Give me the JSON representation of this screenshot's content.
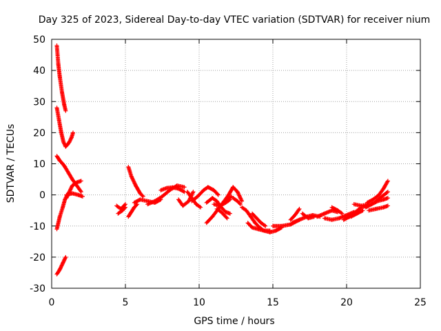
{
  "chart_data": {
    "type": "scatter",
    "title": "Day 325 of 2023, Sidereal Day-to-day VTEC variation (SDTVAR) for receiver nium",
    "xlabel": "GPS time / hours",
    "ylabel": "SDTVAR / TECUs",
    "xlim": [
      0,
      25
    ],
    "ylim": [
      -30,
      50
    ],
    "xticks": [
      0,
      5,
      10,
      15,
      20,
      25
    ],
    "yticks": [
      -30,
      -20,
      -10,
      0,
      10,
      20,
      30,
      40,
      50
    ],
    "grid": true,
    "marker": "+",
    "color": "#ff0000",
    "segments": [
      [
        [
          0.35,
          48
        ],
        [
          0.45,
          42
        ],
        [
          0.55,
          38
        ],
        [
          0.7,
          33
        ],
        [
          0.85,
          29
        ],
        [
          0.95,
          27
        ]
      ],
      [
        [
          0.35,
          28
        ],
        [
          0.5,
          24
        ],
        [
          0.65,
          20
        ],
        [
          0.8,
          17
        ],
        [
          0.95,
          15.5
        ],
        [
          1.05,
          16
        ],
        [
          1.2,
          17
        ],
        [
          1.35,
          18.5
        ],
        [
          1.45,
          20
        ]
      ],
      [
        [
          0.35,
          12.5
        ],
        [
          0.55,
          11
        ],
        [
          0.75,
          10
        ],
        [
          0.9,
          9
        ]
      ],
      [
        [
          0.9,
          9
        ],
        [
          1.15,
          7
        ],
        [
          1.4,
          5
        ],
        [
          1.7,
          3
        ],
        [
          2.0,
          1
        ]
      ],
      [
        [
          1.0,
          -1
        ],
        [
          1.2,
          1
        ],
        [
          1.4,
          3
        ],
        [
          1.7,
          4
        ],
        [
          2.0,
          4.5
        ]
      ],
      [
        [
          1.0,
          0
        ],
        [
          1.4,
          0.5
        ],
        [
          1.8,
          0
        ],
        [
          2.1,
          -0.5
        ]
      ],
      [
        [
          0.35,
          -11
        ],
        [
          0.55,
          -7
        ],
        [
          0.75,
          -4
        ],
        [
          0.9,
          -1.5
        ],
        [
          1.05,
          0
        ]
      ],
      [
        [
          0.35,
          -25.5
        ],
        [
          0.55,
          -24
        ],
        [
          0.75,
          -22
        ],
        [
          0.95,
          -20
        ]
      ],
      [
        [
          4.4,
          -3.5
        ],
        [
          4.7,
          -4.5
        ],
        [
          5.0,
          -3
        ]
      ],
      [
        [
          4.5,
          -6
        ],
        [
          4.8,
          -5
        ],
        [
          5.0,
          -4
        ]
      ],
      [
        [
          5.2,
          9
        ],
        [
          5.4,
          6
        ],
        [
          5.7,
          3
        ],
        [
          6.0,
          0.5
        ],
        [
          6.2,
          -0.5
        ]
      ],
      [
        [
          5.2,
          -7
        ],
        [
          5.4,
          -5.5
        ],
        [
          5.6,
          -4
        ],
        [
          5.8,
          -3
        ]
      ],
      [
        [
          5.6,
          -2.5
        ],
        [
          6.0,
          -1.5
        ],
        [
          6.5,
          -2
        ],
        [
          7.0,
          -2.5
        ],
        [
          7.4,
          -1.5
        ]
      ],
      [
        [
          6.5,
          -3
        ],
        [
          7.0,
          -2
        ],
        [
          7.5,
          -0.5
        ],
        [
          8.0,
          1.5
        ],
        [
          8.5,
          3
        ],
        [
          9.0,
          2.5
        ]
      ],
      [
        [
          7.4,
          1.5
        ],
        [
          7.8,
          2.2
        ],
        [
          8.2,
          2.4
        ],
        [
          8.6,
          2
        ],
        [
          9.0,
          1
        ]
      ],
      [
        [
          8.6,
          -1.5
        ],
        [
          8.9,
          -3.5
        ],
        [
          9.3,
          -2
        ],
        [
          9.6,
          1
        ]
      ],
      [
        [
          9.2,
          1
        ],
        [
          9.5,
          -1
        ],
        [
          9.8,
          -3
        ],
        [
          10.1,
          -4
        ]
      ],
      [
        [
          9.5,
          -2
        ],
        [
          9.9,
          -0.5
        ],
        [
          10.3,
          1.5
        ],
        [
          10.6,
          2.5
        ],
        [
          11.0,
          1.5
        ],
        [
          11.3,
          0
        ]
      ],
      [
        [
          10.5,
          -2.5
        ],
        [
          10.9,
          -1
        ],
        [
          11.2,
          -2
        ],
        [
          11.5,
          -4
        ],
        [
          11.8,
          -5.5
        ],
        [
          12.1,
          -6
        ]
      ],
      [
        [
          10.5,
          -9
        ],
        [
          10.9,
          -7
        ],
        [
          11.3,
          -4.5
        ],
        [
          11.7,
          -2
        ],
        [
          12.2,
          -0.5
        ]
      ],
      [
        [
          11.0,
          -3
        ],
        [
          11.4,
          -3.5
        ],
        [
          11.8,
          -2.5
        ],
        [
          12.1,
          -1.5
        ]
      ],
      [
        [
          11.2,
          -4.5
        ],
        [
          11.5,
          -5.5
        ],
        [
          11.9,
          -7.5
        ]
      ],
      [
        [
          11.7,
          -2
        ],
        [
          12.0,
          0
        ],
        [
          12.3,
          2.5
        ],
        [
          12.6,
          1
        ],
        [
          12.9,
          -2
        ]
      ],
      [
        [
          12.3,
          -1
        ],
        [
          12.6,
          -2
        ],
        [
          12.8,
          -3
        ]
      ],
      [
        [
          12.9,
          -4
        ],
        [
          13.2,
          -5
        ],
        [
          13.5,
          -7
        ],
        [
          13.8,
          -9
        ],
        [
          14.1,
          -10.5
        ],
        [
          14.4,
          -11.5
        ],
        [
          14.8,
          -12
        ],
        [
          15.2,
          -11.5
        ],
        [
          15.6,
          -10.5
        ]
      ],
      [
        [
          13.3,
          -9
        ],
        [
          13.6,
          -10.5
        ],
        [
          14.0,
          -11
        ],
        [
          14.4,
          -11.5
        ],
        [
          14.8,
          -11.5
        ]
      ],
      [
        [
          13.6,
          -6
        ],
        [
          13.9,
          -7.5
        ],
        [
          14.2,
          -9
        ],
        [
          14.5,
          -10
        ]
      ],
      [
        [
          15.0,
          -10
        ],
        [
          15.6,
          -10
        ],
        [
          16.2,
          -9.5
        ],
        [
          16.8,
          -8
        ]
      ],
      [
        [
          16.2,
          -8
        ],
        [
          16.5,
          -6.5
        ],
        [
          16.8,
          -4.5
        ]
      ],
      [
        [
          16.3,
          -9
        ],
        [
          16.8,
          -8
        ],
        [
          17.3,
          -7
        ],
        [
          17.7,
          -6.5
        ],
        [
          18.2,
          -7
        ]
      ],
      [
        [
          17.0,
          -6
        ],
        [
          17.4,
          -7.5
        ],
        [
          17.8,
          -7
        ]
      ],
      [
        [
          18.0,
          -7
        ],
        [
          18.5,
          -6
        ],
        [
          19.0,
          -5
        ],
        [
          19.4,
          -5.5
        ]
      ],
      [
        [
          18.5,
          -7.5
        ],
        [
          19.0,
          -8
        ],
        [
          19.5,
          -7.5
        ],
        [
          20.0,
          -6.5
        ],
        [
          20.5,
          -5.5
        ]
      ],
      [
        [
          19.0,
          -4
        ],
        [
          19.4,
          -5
        ],
        [
          19.7,
          -6
        ]
      ],
      [
        [
          19.8,
          -8
        ],
        [
          20.2,
          -7
        ],
        [
          20.6,
          -5.5
        ],
        [
          21.0,
          -4
        ],
        [
          21.4,
          -3.5
        ]
      ],
      [
        [
          20.3,
          -7
        ],
        [
          20.7,
          -6
        ],
        [
          21.1,
          -5
        ]
      ],
      [
        [
          20.5,
          -3
        ],
        [
          21.0,
          -3.5
        ],
        [
          21.5,
          -3
        ]
      ],
      [
        [
          21.3,
          -4
        ],
        [
          21.7,
          -3
        ],
        [
          22.1,
          -2
        ],
        [
          22.5,
          -1.5
        ],
        [
          22.8,
          -1
        ]
      ],
      [
        [
          21.4,
          -2.5
        ],
        [
          21.8,
          -1.5
        ],
        [
          22.2,
          0
        ],
        [
          22.5,
          2
        ],
        [
          22.8,
          4.5
        ]
      ],
      [
        [
          21.5,
          -5
        ],
        [
          22.0,
          -4.5
        ],
        [
          22.5,
          -4
        ],
        [
          22.8,
          -3.5
        ]
      ],
      [
        [
          22.0,
          -2
        ],
        [
          22.4,
          -0.5
        ],
        [
          22.8,
          1
        ]
      ]
    ]
  }
}
